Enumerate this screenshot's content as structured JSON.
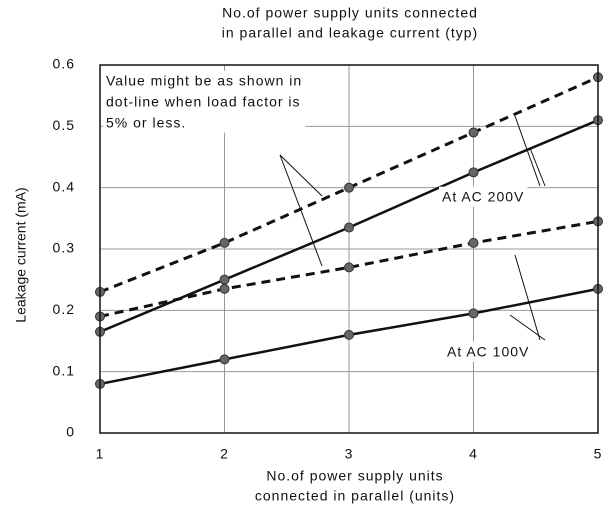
{
  "chart_data": {
    "type": "line",
    "title": [
      "No.of power supply units connected",
      "in parallel and leakage current (typ)"
    ],
    "x_label": [
      "No.of power supply units",
      "connected in parallel (units)"
    ],
    "y_label": "Leakage current (mA)",
    "x": [
      1,
      2,
      3,
      4,
      5
    ],
    "xlim": [
      1,
      5
    ],
    "xticks": [
      1,
      2,
      3,
      4,
      5
    ],
    "ylim": [
      0,
      0.6
    ],
    "yticks": [
      0,
      0.1,
      0.2,
      0.3,
      0.4,
      0.5,
      0.6
    ],
    "grid": true,
    "series": [
      {
        "color": "#111111",
        "style": "dash",
        "values": [
          0.23,
          0.31,
          0.4,
          0.49,
          0.58
        ]
      },
      {
        "color": "#111111",
        "style": "solid",
        "values": [
          0.165,
          0.25,
          0.335,
          0.425,
          0.51
        ]
      },
      {
        "color": "#111111",
        "style": "dash",
        "values": [
          0.19,
          0.235,
          0.27,
          0.31,
          0.345
        ]
      },
      {
        "color": "#111111",
        "style": "solid",
        "values": [
          0.08,
          0.12,
          0.16,
          0.195,
          0.235
        ]
      }
    ],
    "annotations": [
      {
        "text": [
          "Value might be as shown in",
          "dot-line when load factor is",
          "5% or less."
        ]
      },
      {
        "text": [
          "At AC 200V"
        ]
      },
      {
        "text": [
          "At AC 100V"
        ]
      }
    ]
  }
}
